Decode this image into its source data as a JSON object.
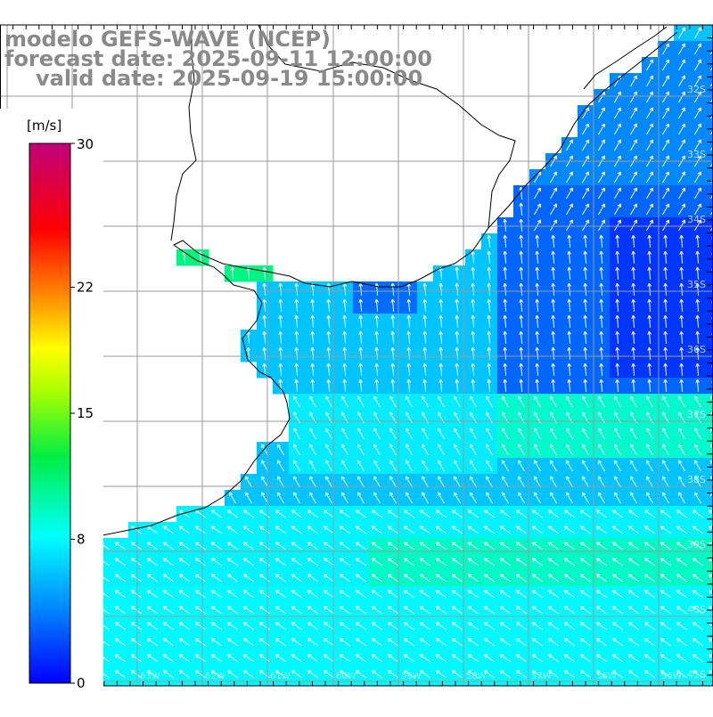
{
  "header": {
    "model": "modelo GEFS-WAVE (NCEP)",
    "forecast": "forecast date: 2025-09-11 12:00:00",
    "valid": "valid date: 2025-09-19 15:00:00"
  },
  "colorbar": {
    "unit": "[m/s]",
    "ticks": [
      "30",
      "22",
      "15",
      "8",
      "0"
    ],
    "min": 0,
    "max": 30,
    "colors": [
      "#0000ff",
      "#00aaff",
      "#00ffff",
      "#00ff00",
      "#ffff00",
      "#ff8800",
      "#ff0000",
      "#c0007a"
    ]
  },
  "map": {
    "lat_labels": [
      "32S",
      "33S",
      "34S",
      "35S",
      "36S",
      "37S",
      "38S",
      "39S",
      "40S",
      "41S"
    ],
    "lon_labels": [
      "65W",
      "64W",
      "63W",
      "62W",
      "61W",
      "60W",
      "59W",
      "58W",
      "57W",
      "56W",
      "55W"
    ],
    "land_color": "#ffffff",
    "grid_color": "#9a9a9a",
    "arrow_color": "#ffffff"
  }
}
